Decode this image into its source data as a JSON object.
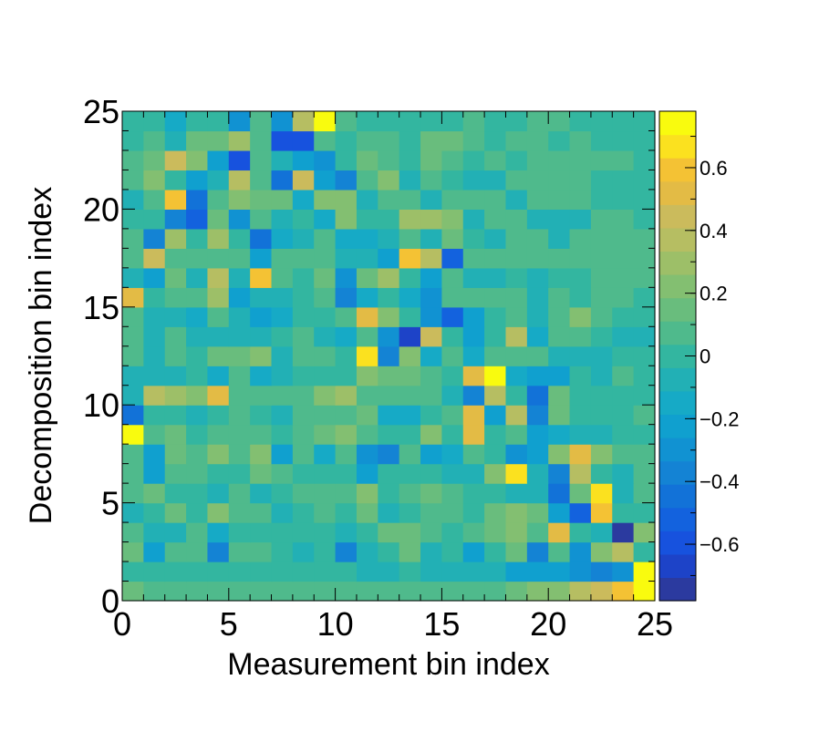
{
  "chart_data": {
    "type": "heatmap",
    "title": "",
    "xlabel": "Measurement bin index",
    "ylabel": "Decomposition bin index",
    "xlim": [
      0,
      25
    ],
    "ylim": [
      0,
      25
    ],
    "x_ticks": [
      "0",
      "5",
      "10",
      "15",
      "20",
      "25"
    ],
    "y_ticks": [
      "0",
      "5",
      "10",
      "15",
      "20",
      "25"
    ],
    "z_range": [
      -0.78,
      0.78
    ],
    "colorbar_ticks": [
      "−0.6",
      "−0.4",
      "−0.2",
      "0",
      "0.2",
      "0.4",
      "0.6"
    ],
    "colorbar_tick_values": [
      -0.6,
      -0.4,
      -0.2,
      0,
      0.2,
      0.4,
      0.6
    ],
    "colorbar_levels": 20,
    "palette": [
      "#2b3a9f",
      "#1d43c8",
      "#1752de",
      "#1362de",
      "#1272d8",
      "#1483d4",
      "#1192d2",
      "#10a0cf",
      "#16aac6",
      "#22b0b5",
      "#33b6a0",
      "#4fba8c",
      "#69bd7d",
      "#83bf71",
      "#9dbf68",
      "#b6be62",
      "#cbbb5c",
      "#e3bb45",
      "#f4c234",
      "#fbe11f",
      "#f9fb0e"
    ],
    "rows_bottom_to_top": [
      [
        0.15,
        0.05,
        0.05,
        0.05,
        0.05,
        0.05,
        0.05,
        0.05,
        0.05,
        0.05,
        0.05,
        0.05,
        0.05,
        0.05,
        0.05,
        0.05,
        0.1,
        0.1,
        0.15,
        0.2,
        0.25,
        0.35,
        0.45,
        0.6,
        0.78
      ],
      [
        0,
        0,
        0,
        0,
        0,
        0,
        0,
        0,
        0,
        0,
        0,
        -0.05,
        -0.05,
        0,
        -0.05,
        -0.05,
        -0.05,
        -0.1,
        -0.2,
        -0.25,
        -0.25,
        -0.3,
        -0.4,
        -0.3,
        0.78
      ],
      [
        0.15,
        -0.25,
        0.05,
        0.1,
        -0.4,
        0.1,
        0.1,
        0,
        -0.1,
        0,
        -0.35,
        -0.05,
        0,
        0.15,
        -0.05,
        0,
        -0.25,
        0,
        0.15,
        -0.4,
        0.05,
        -0.3,
        0.25,
        0.4,
        0
      ],
      [
        0.05,
        -0.1,
        -0.1,
        0.05,
        -0.15,
        0,
        0,
        0,
        0,
        0,
        -0.1,
        0,
        0.15,
        0.15,
        0.05,
        0,
        0.05,
        0.15,
        0.25,
        0.1,
        0.55,
        0,
        -0.05,
        -0.75,
        0.2
      ],
      [
        -0.05,
        0,
        0.15,
        0,
        0.2,
        0.1,
        0.1,
        -0.05,
        0,
        0.1,
        0,
        0.15,
        -0.1,
        0,
        0.1,
        0.05,
        0,
        0.15,
        0.25,
        0.15,
        -0.2,
        -0.5,
        0.6,
        0,
        0
      ],
      [
        0.05,
        0.15,
        0,
        0,
        -0.05,
        0.1,
        -0.05,
        0,
        0.1,
        0.1,
        0.05,
        0.2,
        0,
        0.1,
        0.15,
        0.05,
        0,
        0,
        -0.1,
        -0.1,
        -0.45,
        0.15,
        0.65,
        -0.1,
        0.05
      ],
      [
        0.05,
        -0.2,
        0.05,
        0.1,
        0,
        0,
        0.15,
        0.05,
        0,
        0,
        0,
        -0.2,
        0,
        0,
        0,
        -0.05,
        -0.1,
        0.2,
        0.7,
        -0.1,
        -0.4,
        0.4,
        0,
        -0.05,
        0.1
      ],
      [
        0.1,
        -0.2,
        0.15,
        0.05,
        0.2,
        0.1,
        0.25,
        -0.2,
        0.1,
        -0.15,
        0.1,
        -0.3,
        -0.35,
        0.1,
        -0.2,
        -0.15,
        0.1,
        0,
        -0.3,
        -0.25,
        0.25,
        0.5,
        0.2,
        0.05,
        0.05
      ],
      [
        0.78,
        0.05,
        0.15,
        0,
        0.1,
        0.1,
        0.1,
        0,
        0.1,
        0.15,
        0.2,
        0.05,
        0,
        0,
        0.2,
        0,
        0.5,
        0,
        0.1,
        -0.2,
        -0.15,
        -0.1,
        -0.1,
        0,
        0
      ],
      [
        -0.45,
        0,
        0,
        -0.05,
        0,
        0.05,
        0,
        -0.1,
        0.1,
        0.05,
        0.1,
        0.15,
        -0.15,
        -0.15,
        0,
        0.1,
        0.5,
        -0.2,
        0.4,
        -0.4,
        0.15,
        0,
        0,
        0,
        0.05
      ],
      [
        -0.1,
        0.35,
        0.3,
        0.2,
        0.5,
        0.1,
        0.1,
        0.05,
        0.1,
        0.25,
        0.3,
        0.1,
        0.05,
        0.05,
        0.1,
        -0.05,
        -0.35,
        0.4,
        0,
        -0.45,
        0.15,
        0,
        0,
        0,
        0
      ],
      [
        -0.05,
        -0.05,
        -0.05,
        0,
        -0.15,
        0.05,
        -0.15,
        -0.05,
        0,
        0,
        0,
        0.2,
        0.15,
        0.15,
        0.1,
        0,
        0.55,
        0.78,
        -0.15,
        -0.2,
        -0.2,
        0,
        -0.05,
        0.1,
        0
      ],
      [
        0.05,
        -0.05,
        0.1,
        0,
        0.15,
        0.15,
        0.2,
        -0.05,
        0.1,
        0.1,
        0,
        0.7,
        -0.4,
        0.2,
        -0.15,
        0.05,
        -0.15,
        0.05,
        0.1,
        0.1,
        -0.05,
        -0.1,
        -0.1,
        0,
        0
      ],
      [
        0.05,
        -0.05,
        0.05,
        -0.05,
        -0.05,
        -0.05,
        -0.1,
        0,
        0.05,
        -0.05,
        -0.15,
        0.1,
        -0.3,
        -0.7,
        0.45,
        0,
        -0.2,
        0,
        0.35,
        -0.15,
        0.1,
        0.1,
        0,
        -0.05,
        -0.05
      ],
      [
        0.05,
        -0.05,
        -0.05,
        -0.15,
        0.1,
        -0.1,
        -0.2,
        -0.15,
        0,
        0,
        0.1,
        0.5,
        0.2,
        0,
        -0.3,
        -0.55,
        -0.2,
        0,
        0.1,
        -0.05,
        0.1,
        0.2,
        0.05,
        0,
        0
      ],
      [
        0.5,
        0,
        0.05,
        0.05,
        0.3,
        -0.2,
        -0.1,
        -0.05,
        0,
        0.1,
        -0.4,
        -0.15,
        0,
        -0.15,
        -0.3,
        0.1,
        0.1,
        0.05,
        0.1,
        -0.05,
        0.1,
        0,
        0.1,
        0.1,
        0
      ],
      [
        -0.05,
        -0.25,
        0.15,
        -0.05,
        0.4,
        -0.1,
        0.6,
        0.1,
        0,
        0.15,
        -0.3,
        0.15,
        0.3,
        0,
        -0.2,
        0.1,
        -0.05,
        -0.1,
        0,
        -0.05,
        0,
        0,
        0.05,
        0.05,
        0.05
      ],
      [
        0.05,
        0.45,
        0.05,
        0.1,
        0.05,
        0.1,
        -0.2,
        0.1,
        0.05,
        0.1,
        -0.05,
        -0.05,
        -0.2,
        0.6,
        0.35,
        -0.5,
        0.1,
        0.05,
        0.05,
        0.05,
        0.05,
        0.1,
        0.05,
        0.05,
        0.05
      ],
      [
        0.05,
        -0.35,
        0.3,
        0,
        0.3,
        0,
        -0.45,
        -0.15,
        -0.05,
        0.1,
        -0.15,
        -0.15,
        -0.05,
        0.1,
        -0.05,
        0.15,
        0,
        -0.05,
        0.05,
        0.05,
        -0.05,
        0.1,
        0.05,
        0.05,
        0.1
      ],
      [
        0,
        0,
        -0.35,
        -0.5,
        0.15,
        -0.3,
        0.05,
        -0.05,
        0,
        -0.15,
        0.25,
        0,
        0,
        0.3,
        0.3,
        0.25,
        -0.1,
        0.05,
        0.05,
        -0.1,
        -0.1,
        -0.05,
        0.1,
        0.1,
        0
      ],
      [
        -0.05,
        0.1,
        0.6,
        -0.45,
        0.05,
        0.2,
        0.15,
        0.15,
        -0.15,
        0.2,
        0.2,
        -0.1,
        0.05,
        0.05,
        -0.1,
        0.05,
        0.05,
        0.1,
        -0.05,
        0.05,
        0.05,
        0.05,
        0,
        0,
        0
      ],
      [
        0.05,
        0.2,
        0,
        -0.25,
        -0.05,
        0.35,
        0.1,
        -0.45,
        0.45,
        -0.25,
        -0.35,
        0.05,
        0.2,
        -0.05,
        0.1,
        0,
        -0.05,
        -0.05,
        0.1,
        0.05,
        0.1,
        0.1,
        0,
        0,
        0
      ],
      [
        0.05,
        0.15,
        0.45,
        0.2,
        -0.2,
        -0.6,
        0.1,
        -0.05,
        -0.2,
        -0.3,
        0,
        0.15,
        0.05,
        0,
        0.15,
        0.1,
        0,
        0.05,
        0,
        0.1,
        0.05,
        0.1,
        0.1,
        0.1,
        0
      ],
      [
        0,
        0.05,
        -0.05,
        0.15,
        0.15,
        0.3,
        0.1,
        -0.6,
        -0.6,
        0.1,
        0,
        0.05,
        0.1,
        0,
        0.15,
        0.15,
        0.05,
        0,
        0.05,
        0.1,
        0,
        0.1,
        0,
        0,
        0
      ],
      [
        0,
        0,
        -0.15,
        0,
        0,
        -0.3,
        0.05,
        -0.3,
        0.4,
        0.78,
        0.05,
        0,
        0,
        0,
        0,
        0,
        0.05,
        0,
        0,
        0.1,
        0.1,
        0,
        0,
        0,
        0
      ]
    ]
  }
}
